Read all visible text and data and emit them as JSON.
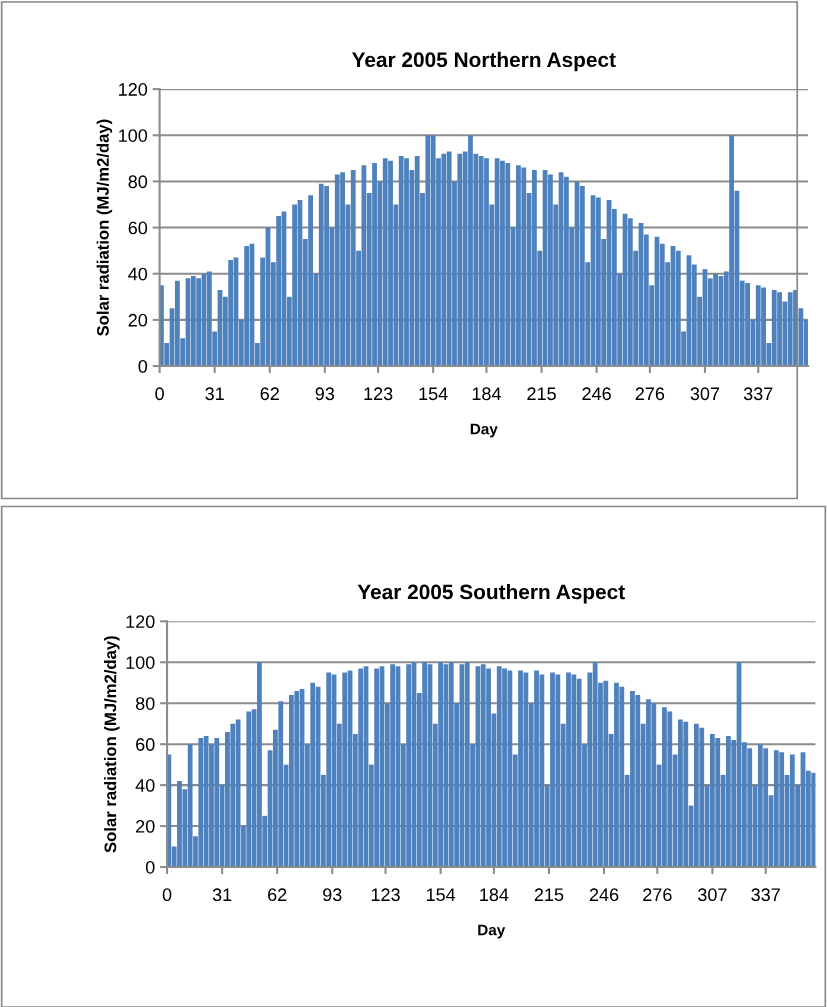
{
  "chart_data": [
    {
      "type": "bar",
      "title": "Year 2005 Northern Aspect",
      "xlabel": "Day",
      "ylabel": "Solar radiation (MJ/m2/day)",
      "x": [
        1,
        4,
        7,
        10,
        13,
        16,
        19,
        22,
        25,
        28,
        31,
        34,
        37,
        40,
        43,
        46,
        49,
        52,
        55,
        58,
        61,
        64,
        67,
        70,
        73,
        76,
        79,
        82,
        85,
        88,
        91,
        94,
        97,
        100,
        103,
        106,
        109,
        112,
        115,
        118,
        121,
        124,
        127,
        130,
        133,
        136,
        139,
        142,
        145,
        148,
        151,
        154,
        157,
        160,
        163,
        166,
        169,
        172,
        175,
        178,
        181,
        184,
        187,
        190,
        193,
        196,
        199,
        202,
        205,
        208,
        211,
        214,
        217,
        220,
        223,
        226,
        229,
        232,
        235,
        238,
        241,
        244,
        247,
        250,
        253,
        256,
        259,
        262,
        265,
        268,
        271,
        274,
        277,
        280,
        283,
        286,
        289,
        292,
        295,
        298,
        301,
        304,
        307,
        310,
        313,
        316,
        319,
        322,
        325,
        328,
        331,
        334,
        337,
        340,
        343,
        346,
        349,
        352,
        355,
        358,
        361,
        364
      ],
      "series": [
        {
          "color": "#4f81bd",
          "values": [
            35,
            10,
            25,
            37,
            12,
            38,
            39,
            38,
            40,
            41,
            15,
            33,
            30,
            46,
            47,
            20,
            52,
            53,
            10,
            47,
            60,
            45,
            65,
            67,
            30,
            70,
            72,
            55,
            74,
            40,
            79,
            78,
            60,
            83,
            84,
            70,
            85,
            50,
            87,
            75,
            88,
            80,
            90,
            89,
            70,
            91,
            90,
            85,
            91,
            75,
            100,
            100,
            90,
            92,
            93,
            80,
            92,
            93,
            100,
            92,
            91,
            90,
            70,
            90,
            89,
            88,
            60,
            87,
            86,
            75,
            85,
            50,
            85,
            83,
            70,
            84,
            82,
            60,
            80,
            78,
            45,
            74,
            73,
            55,
            72,
            68,
            40,
            66,
            64,
            50,
            62,
            57,
            35,
            56,
            53,
            45,
            52,
            50,
            15,
            48,
            44,
            30,
            42,
            38,
            40,
            39,
            41,
            100,
            76,
            37,
            36,
            20,
            35,
            34,
            10,
            33,
            32,
            28,
            32,
            33,
            25,
            20
          ]
        }
      ],
      "xlim": [
        0,
        365
      ],
      "xticks": [
        0,
        31,
        62,
        93,
        123,
        154,
        184,
        215,
        246,
        276,
        307,
        337
      ],
      "ylim": [
        0,
        120
      ],
      "yticks": [
        0,
        20,
        40,
        60,
        80,
        100,
        120
      ],
      "grid": "y"
    },
    {
      "type": "bar",
      "title": "Year 2005 Southern Aspect",
      "xlabel": "Day",
      "ylabel": "Solar radiation (MJ/m2/day)",
      "x": [
        1,
        4,
        7,
        10,
        13,
        16,
        19,
        22,
        25,
        28,
        31,
        34,
        37,
        40,
        43,
        46,
        49,
        52,
        55,
        58,
        61,
        64,
        67,
        70,
        73,
        76,
        79,
        82,
        85,
        88,
        91,
        94,
        97,
        100,
        103,
        106,
        109,
        112,
        115,
        118,
        121,
        124,
        127,
        130,
        133,
        136,
        139,
        142,
        145,
        148,
        151,
        154,
        157,
        160,
        163,
        166,
        169,
        172,
        175,
        178,
        181,
        184,
        187,
        190,
        193,
        196,
        199,
        202,
        205,
        208,
        211,
        214,
        217,
        220,
        223,
        226,
        229,
        232,
        235,
        238,
        241,
        244,
        247,
        250,
        253,
        256,
        259,
        262,
        265,
        268,
        271,
        274,
        277,
        280,
        283,
        286,
        289,
        292,
        295,
        298,
        301,
        304,
        307,
        310,
        313,
        316,
        319,
        322,
        325,
        328,
        331,
        334,
        337,
        340,
        343,
        346,
        349,
        352,
        355,
        358,
        361,
        364
      ],
      "series": [
        {
          "color": "#4f81bd",
          "values": [
            55,
            10,
            42,
            38,
            60,
            15,
            63,
            64,
            60,
            63,
            40,
            66,
            70,
            72,
            20,
            76,
            77,
            100,
            25,
            57,
            67,
            81,
            50,
            84,
            86,
            87,
            60,
            90,
            88,
            45,
            95,
            94,
            70,
            95,
            96,
            65,
            97,
            98,
            50,
            97,
            98,
            80,
            99,
            98,
            60,
            99,
            100,
            85,
            100,
            99,
            70,
            100,
            99,
            100,
            80,
            99,
            100,
            60,
            98,
            99,
            97,
            75,
            98,
            97,
            96,
            55,
            96,
            95,
            80,
            96,
            94,
            40,
            95,
            94,
            70,
            95,
            94,
            92,
            60,
            95,
            100,
            90,
            91,
            65,
            90,
            88,
            45,
            86,
            84,
            70,
            82,
            80,
            50,
            78,
            76,
            55,
            72,
            71,
            30,
            70,
            68,
            40,
            65,
            63,
            45,
            64,
            62,
            100,
            61,
            58,
            40,
            60,
            58,
            35,
            57,
            56,
            45,
            55,
            40,
            56,
            47,
            46
          ]
        }
      ],
      "xlim": [
        0,
        365
      ],
      "xticks": [
        0,
        31,
        62,
        93,
        123,
        154,
        184,
        215,
        246,
        276,
        307,
        337
      ],
      "ylim": [
        0,
        120
      ],
      "yticks": [
        0,
        20,
        40,
        60,
        80,
        100,
        120
      ],
      "grid": "y"
    }
  ]
}
